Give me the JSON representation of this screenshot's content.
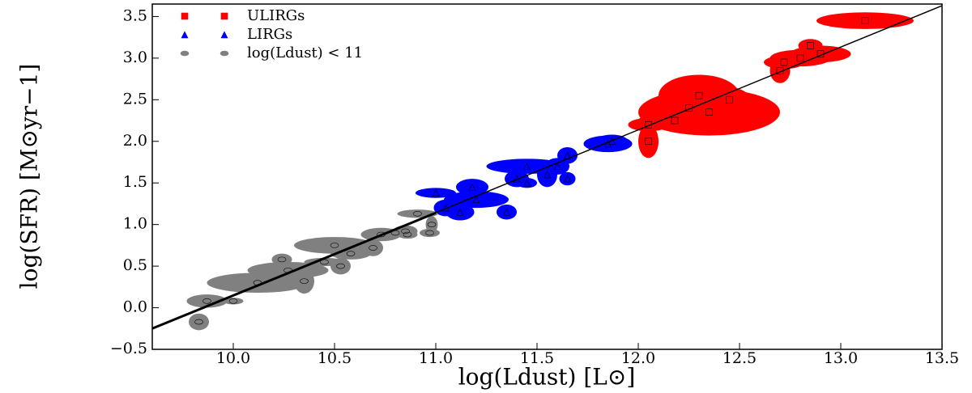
{
  "chart_data": {
    "type": "scatter",
    "xlabel": "log(Ldust) [L⊙]",
    "ylabel": "log(SFR) [M⊙yr−1]",
    "xlim": [
      9.6,
      13.5
    ],
    "ylim": [
      -0.5,
      3.65
    ],
    "xticks": [
      {
        "value": 10,
        "label": "10.0"
      },
      10.5,
      {
        "value": 11,
        "label": "11.0"
      },
      11.5,
      {
        "value": 12,
        "label": "12.0"
      },
      12.5,
      {
        "value": 13,
        "label": "13.0"
      },
      13.5
    ],
    "yticks": [
      {
        "value": -0.5,
        "label": "−0.5"
      },
      {
        "value": 0,
        "label": "0.0"
      },
      0.5,
      {
        "value": 1,
        "label": "1.0"
      },
      1.5,
      {
        "value": 2,
        "label": "2.0"
      },
      2.5,
      {
        "value": 3,
        "label": "3.0"
      },
      3.5
    ],
    "legend": "upper left",
    "series": [
      {
        "name": "ULIRGs",
        "color": "#ff0000",
        "marker": "square",
        "x": [
          12.05,
          12.05,
          12.18,
          12.3,
          12.35,
          12.25,
          12.45,
          12.7,
          12.72,
          12.8,
          12.9,
          13.12,
          12.85
        ],
        "values": [
          2.0,
          2.2,
          2.25,
          2.55,
          2.35,
          2.4,
          2.5,
          2.85,
          2.95,
          3.0,
          3.05,
          3.45,
          3.15
        ],
        "x_err": [
          0.05,
          0.1,
          0.18,
          0.2,
          0.35,
          0.2,
          0.1,
          0.05,
          0.1,
          0.15,
          0.15,
          0.24,
          0.06
        ],
        "y_err": [
          0.2,
          0.08,
          0.1,
          0.25,
          0.28,
          0.15,
          0.15,
          0.15,
          0.08,
          0.1,
          0.1,
          0.1,
          0.08
        ]
      },
      {
        "name": "LIRGs",
        "color": "#0000ff",
        "marker": "triangle",
        "x": [
          11.0,
          11.05,
          11.12,
          11.2,
          11.18,
          11.35,
          11.4,
          11.45,
          11.45,
          11.55,
          11.6,
          11.65,
          11.65,
          11.85,
          11.87
        ],
        "values": [
          1.38,
          1.2,
          1.15,
          1.3,
          1.45,
          1.15,
          1.55,
          1.7,
          1.5,
          1.6,
          1.7,
          1.83,
          1.55,
          1.97,
          2.0
        ],
        "x_err": [
          0.1,
          0.06,
          0.07,
          0.16,
          0.08,
          0.05,
          0.06,
          0.2,
          0.05,
          0.05,
          0.06,
          0.05,
          0.04,
          0.12,
          0.08
        ],
        "y_err": [
          0.06,
          0.1,
          0.1,
          0.1,
          0.1,
          0.09,
          0.1,
          0.09,
          0.06,
          0.15,
          0.1,
          0.1,
          0.08,
          0.1,
          0.08
        ]
      },
      {
        "name": "log(Ldust) < 11",
        "color": "#808080",
        "marker": "circle",
        "x": [
          9.83,
          9.87,
          10.0,
          10.12,
          10.24,
          10.35,
          10.27,
          10.5,
          10.53,
          10.58,
          10.69,
          10.73,
          10.8,
          10.85,
          10.91,
          10.97,
          10.98,
          10.86,
          10.45
        ],
        "values": [
          -0.17,
          0.08,
          0.08,
          0.3,
          0.58,
          0.32,
          0.45,
          0.75,
          0.5,
          0.65,
          0.72,
          0.88,
          0.9,
          0.92,
          1.13,
          0.9,
          1.0,
          0.88,
          0.55
        ],
        "x_err": [
          0.05,
          0.1,
          0.05,
          0.25,
          0.05,
          0.05,
          0.2,
          0.2,
          0.05,
          0.1,
          0.05,
          0.1,
          0.05,
          0.06,
          0.1,
          0.05,
          0.03,
          0.05,
          0.1
        ],
        "y_err": [
          0.1,
          0.08,
          0.04,
          0.12,
          0.07,
          0.15,
          0.1,
          0.1,
          0.1,
          0.07,
          0.1,
          0.08,
          0.05,
          0.07,
          0.05,
          0.05,
          0.1,
          0.05,
          0.05
        ]
      }
    ],
    "lines": [
      {
        "color": "#000000",
        "width": 1.5,
        "x": [
          9.6,
          13.5
        ],
        "values": [
          -0.25,
          3.63
        ]
      },
      {
        "color": "#000000",
        "width": 3,
        "x": [
          9.6,
          11.0
        ],
        "values": [
          -0.25,
          1.14
        ]
      }
    ]
  }
}
